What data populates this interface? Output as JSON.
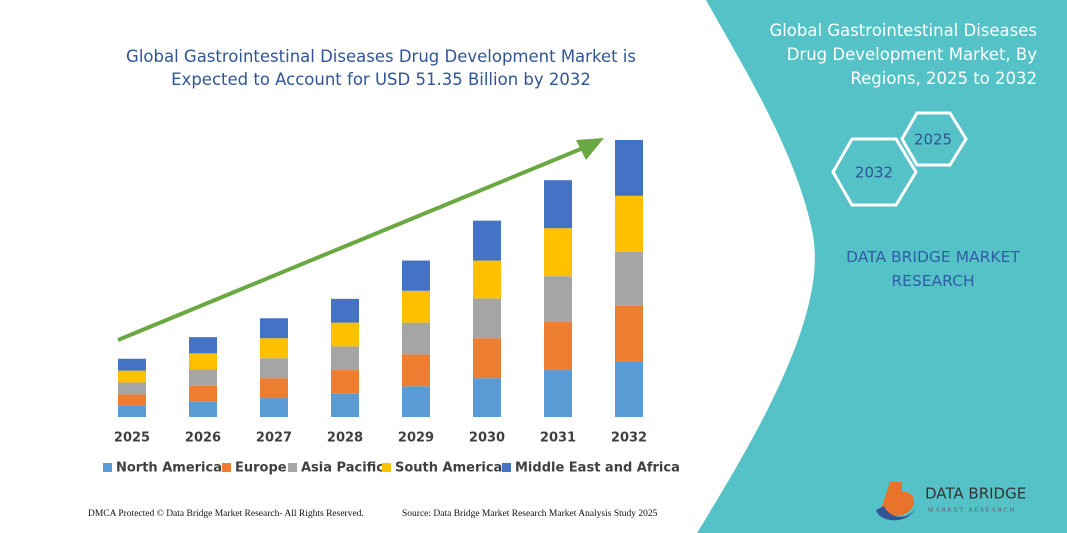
{
  "chart_data": {
    "type": "bar",
    "stacked": true,
    "title": "Global Gastrointestinal Diseases Drug Development Market is Expected to Account for USD 51.35 Billion by 2032",
    "categories": [
      "2025",
      "2026",
      "2027",
      "2028",
      "2029",
      "2030",
      "2031",
      "2032"
    ],
    "series": [
      {
        "name": "North America",
        "color": "#5b9bd5",
        "values": [
          2.2,
          2.8,
          3.5,
          4.3,
          5.7,
          7.2,
          8.7,
          10.2
        ]
      },
      {
        "name": "Europe",
        "color": "#ed7d31",
        "values": [
          2.0,
          3.0,
          3.7,
          4.4,
          5.9,
          7.4,
          8.9,
          10.4
        ]
      },
      {
        "name": "Asia Pacific",
        "color": "#a5a5a5",
        "values": [
          2.2,
          3.0,
          3.7,
          4.4,
          5.9,
          7.4,
          8.5,
          10.0
        ]
      },
      {
        "name": "South America",
        "color": "#ffc000",
        "values": [
          2.2,
          3.0,
          3.7,
          4.4,
          5.9,
          7.0,
          8.9,
          10.4
        ]
      },
      {
        "name": "Middle East and Africa",
        "color": "#4472c4",
        "values": [
          2.2,
          3.0,
          3.7,
          4.4,
          5.6,
          7.4,
          8.9,
          10.35
        ]
      }
    ]
  },
  "panel": {
    "title": "Global Gastrointestinal Diseases Drug Development Market, By Regions, 2025 to 2032",
    "hexagons": [
      "2025",
      "2032"
    ],
    "brand": "DATA BRIDGE MARKET RESEARCH"
  },
  "logo": {
    "name": "DATA BRIDGE",
    "tagline": "MARKET RESEARCH"
  },
  "footer": {
    "left": "DMCA Protected © Data Bridge Market Research- All Rights Reserved.",
    "right": "Source: Data Bridge Market Research Market Analysis Study 2025"
  }
}
